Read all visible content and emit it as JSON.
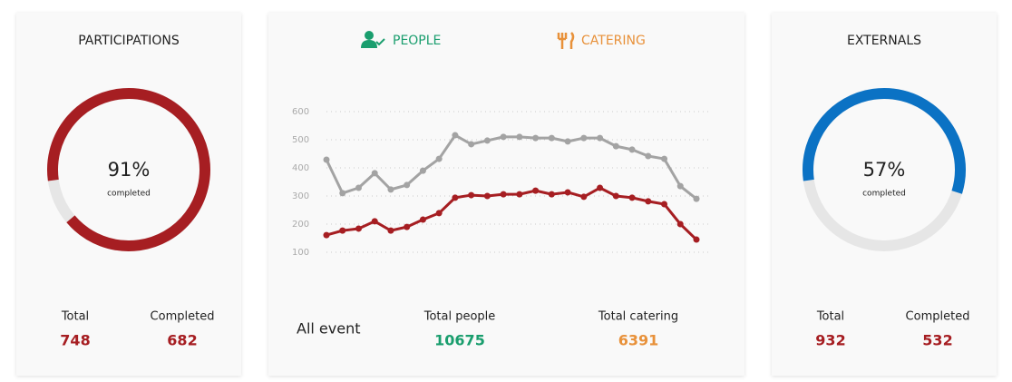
{
  "chart_data": [
    {
      "type": "donut",
      "title": "PARTICIPATIONS",
      "values": [
        91
      ],
      "value_labels": [
        "91%"
      ],
      "caption": "completed",
      "color": "#a61e22",
      "track_color": "#e6e6e6",
      "value_color": "#a61e22",
      "stats": [
        {
          "label": "Total",
          "value": 748
        },
        {
          "label": "Completed",
          "value": 682
        }
      ]
    },
    {
      "type": "line",
      "categories": [
        null,
        null,
        null,
        null,
        null,
        null,
        null,
        null,
        null,
        null,
        null,
        null,
        null,
        null,
        null,
        null,
        null,
        null,
        null,
        null,
        null,
        null,
        null,
        null
      ],
      "series": [
        {
          "name": "PEOPLE",
          "color": "#a3a3a3",
          "label_color": "#1a9e6e",
          "values": [
            429,
            310,
            329,
            381,
            323,
            339,
            390,
            432,
            516,
            484,
            497,
            510,
            510,
            506,
            506,
            494,
            506,
            506,
            477,
            465,
            442,
            432,
            335,
            290
          ]
        },
        {
          "name": "CATERING",
          "color": "#a61e22",
          "label_color": "#e8913a",
          "values": [
            161,
            177,
            184,
            210,
            177,
            190,
            216,
            239,
            294,
            303,
            300,
            306,
            306,
            319,
            306,
            313,
            297,
            329,
            300,
            294,
            281,
            271,
            200,
            145
          ]
        }
      ],
      "ylim": [
        100,
        600
      ],
      "yticks": [
        100,
        200,
        300,
        400,
        500,
        600
      ],
      "grid": true,
      "footer_title": "All event",
      "totals": [
        {
          "label": "Total people",
          "value": 10675,
          "color": "#1a9e6e"
        },
        {
          "label": "Total catering",
          "value": 6391,
          "color": "#e8913a"
        }
      ]
    },
    {
      "type": "donut",
      "title": "EXTERNALS",
      "values": [
        57
      ],
      "value_labels": [
        "57%"
      ],
      "caption": "completed",
      "color": "#0b72c4",
      "track_color": "#e6e6e6",
      "value_color": "#a61e22",
      "stats": [
        {
          "label": "Total",
          "value": 932
        },
        {
          "label": "Completed",
          "value": 532
        }
      ]
    }
  ]
}
